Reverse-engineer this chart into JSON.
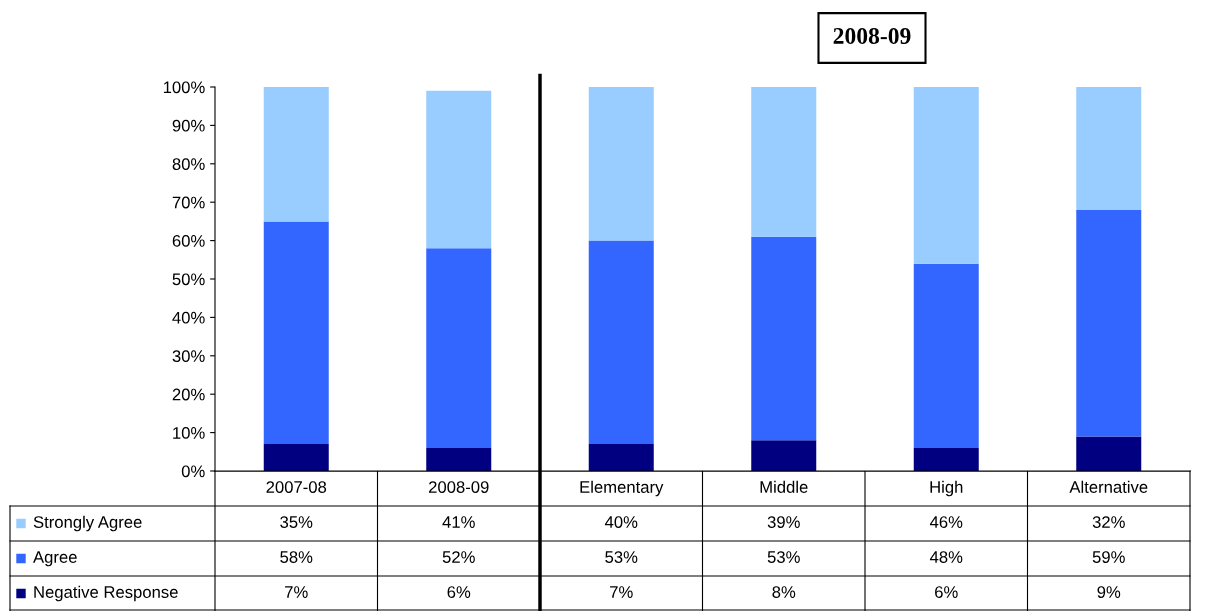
{
  "chart_data": {
    "type": "bar",
    "stacked": true,
    "annotations": [
      "2008-09"
    ],
    "categories": [
      "2007-08",
      "2008-09",
      "Elementary",
      "Middle",
      "High",
      "Alternative"
    ],
    "series": [
      {
        "name": "Negative Response",
        "color": "#000080",
        "values": [
          7,
          6,
          7,
          8,
          6,
          9
        ],
        "value_labels": [
          "7%",
          "6%",
          "7%",
          "8%",
          "6%",
          "9%"
        ]
      },
      {
        "name": "Agree",
        "color": "#3366ff",
        "values": [
          58,
          52,
          53,
          53,
          48,
          59
        ],
        "value_labels": [
          "58%",
          "52%",
          "53%",
          "53%",
          "48%",
          "59%"
        ]
      },
      {
        "name": "Strongly Agree",
        "color": "#99ccff",
        "values": [
          35,
          41,
          40,
          39,
          46,
          32
        ],
        "value_labels": [
          "35%",
          "41%",
          "40%",
          "39%",
          "46%",
          "32%"
        ]
      }
    ],
    "ylim": [
      0,
      100
    ],
    "yticks": [
      {
        "value": 0,
        "label": "0%"
      },
      {
        "value": 10,
        "label": "10%"
      },
      {
        "value": 20,
        "label": "20%"
      },
      {
        "value": 30,
        "label": "30%"
      },
      {
        "value": 40,
        "label": "40%"
      },
      {
        "value": 50,
        "label": "50%"
      },
      {
        "value": 60,
        "label": "60%"
      },
      {
        "value": 70,
        "label": "70%"
      },
      {
        "value": 80,
        "label": "80%"
      },
      {
        "value": 90,
        "label": "90%"
      },
      {
        "value": 100,
        "label": "100%"
      }
    ],
    "legend": "bottom left",
    "grid": false
  }
}
